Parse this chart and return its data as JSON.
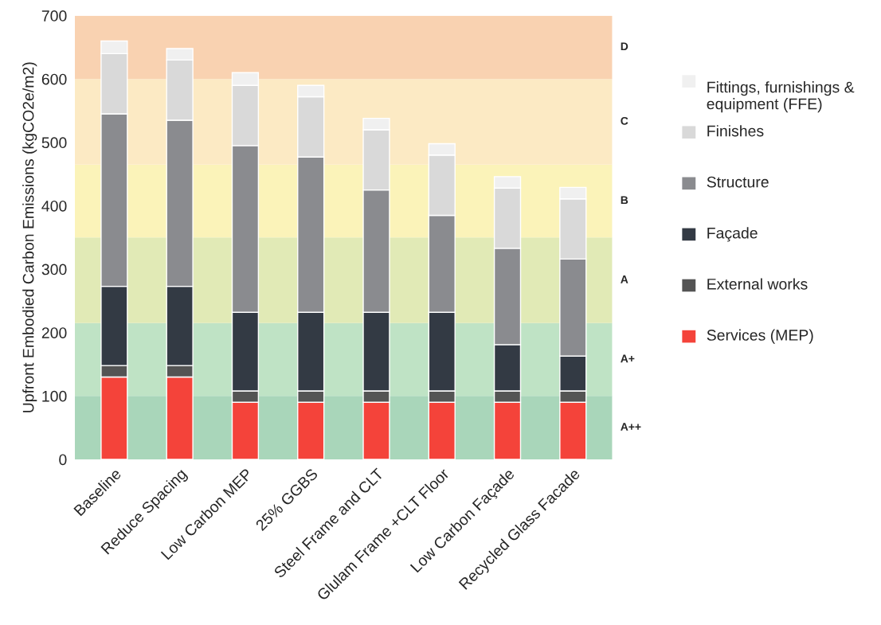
{
  "chart_data": {
    "type": "bar",
    "stacked": true,
    "ylabel": "Upfront Embodied Carbon Emissions (kgCO2e/m2)",
    "categories": [
      "Baseline",
      "Reduce Spacing",
      "Low Carbon MEP",
      "25% GGBS",
      "Steel Frame and CLT",
      "Glulam Frame +CLT Floor",
      "Low Carbon Façade",
      "Recycled Glass Facade"
    ],
    "series": [
      {
        "name": "Services (MEP)",
        "color": "#f4433a",
        "values": [
          130,
          130,
          90,
          90,
          90,
          90,
          90,
          90
        ]
      },
      {
        "name": "External works",
        "color": "#545454",
        "values": [
          18,
          18,
          18,
          18,
          18,
          18,
          18,
          18
        ]
      },
      {
        "name": "Façade",
        "color": "#333a44",
        "values": [
          125,
          125,
          124,
          124,
          124,
          124,
          73,
          55
        ]
      },
      {
        "name": "Structure",
        "color": "#8a8b8f",
        "values": [
          272,
          262,
          263,
          245,
          193,
          153,
          152,
          153
        ]
      },
      {
        "name": "Finishes",
        "color": "#d9d9d9",
        "values": [
          95,
          95,
          95,
          95,
          95,
          95,
          95,
          95
        ]
      },
      {
        "name": "Fittings, furnishings & equipment (FFE)",
        "color": "#f0f0f0",
        "values": [
          20,
          18,
          20,
          18,
          18,
          18,
          18,
          18
        ]
      }
    ],
    "ylim": [
      0,
      700
    ],
    "yticks": [
      0,
      100,
      200,
      300,
      400,
      500,
      600,
      700
    ],
    "grid": false,
    "legend": "right",
    "bands": [
      {
        "axis": "y",
        "from": 0,
        "to": 100,
        "label": "A++",
        "color": "#a9d6ba"
      },
      {
        "axis": "y",
        "from": 100,
        "to": 215,
        "label": "A+",
        "color": "#bfe3c5"
      },
      {
        "axis": "y",
        "from": 215,
        "to": 350,
        "label": "A",
        "color": "#e1eab6"
      },
      {
        "axis": "y",
        "from": 350,
        "to": 465,
        "label": "B",
        "color": "#fbf3b9"
      },
      {
        "axis": "y",
        "from": 465,
        "to": 600,
        "label": "C",
        "color": "#fceac4"
      },
      {
        "axis": "y",
        "from": 600,
        "to": 700,
        "label": "D",
        "color": "#f9d2b1"
      }
    ]
  }
}
